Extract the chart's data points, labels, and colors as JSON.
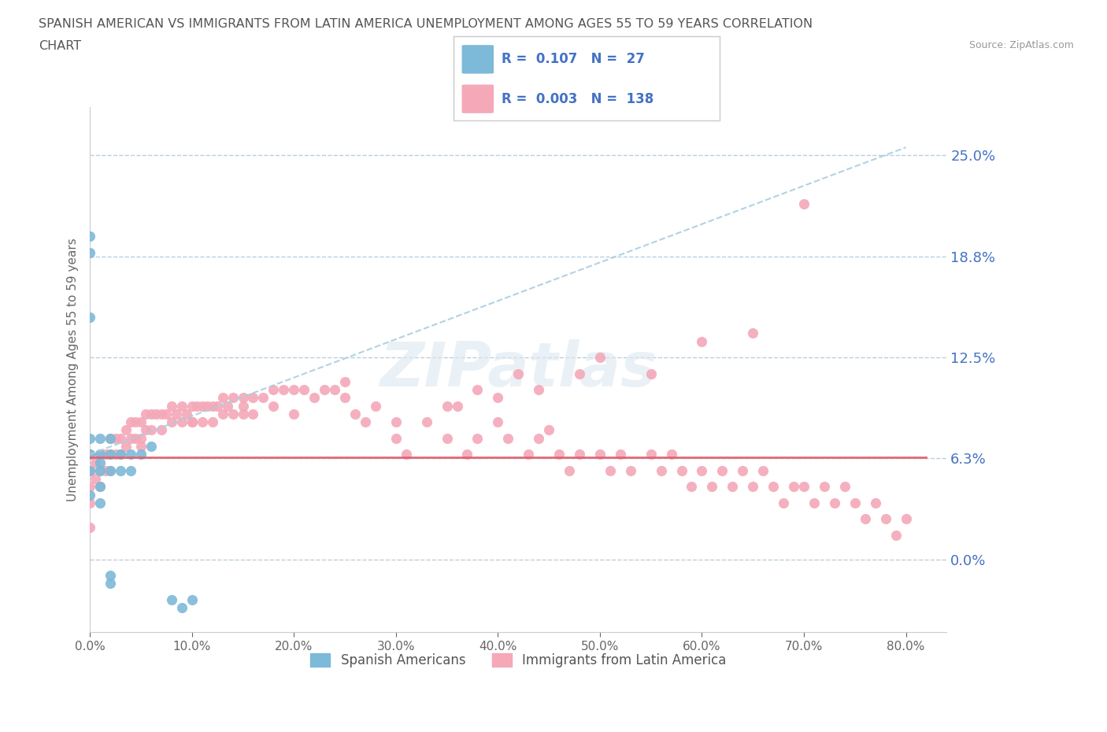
{
  "title_line1": "SPANISH AMERICAN VS IMMIGRANTS FROM LATIN AMERICA UNEMPLOYMENT AMONG AGES 55 TO 59 YEARS CORRELATION",
  "title_line2": "CHART",
  "source_text": "Source: ZipAtlas.com",
  "ylabel": "Unemployment Among Ages 55 to 59 years",
  "xlim": [
    0.0,
    0.84
  ],
  "ylim": [
    -0.045,
    0.28
  ],
  "yticks": [
    0.0,
    0.0625,
    0.125,
    0.1875,
    0.25
  ],
  "ytick_labels": [
    "0.0%",
    "6.3%",
    "12.5%",
    "18.8%",
    "25.0%"
  ],
  "xticks": [
    0.0,
    0.1,
    0.2,
    0.3,
    0.4,
    0.5,
    0.6,
    0.7,
    0.8
  ],
  "xtick_labels": [
    "0.0%",
    "10.0%",
    "20.0%",
    "30.0%",
    "40.0%",
    "50.0%",
    "60.0%",
    "70.0%",
    "80.0%"
  ],
  "grid_color": "#b8cfe0",
  "blue_color": "#7db9d8",
  "pink_color": "#f4a8b8",
  "blue_line_color": "#aacde0",
  "pink_line_color": "#e06070",
  "legend_label1": "Spanish Americans",
  "legend_label2": "Immigrants from Latin America",
  "watermark": "ZIPatlas",
  "blue_scatter_x": [
    0.0,
    0.0,
    0.0,
    0.0,
    0.0,
    0.0,
    0.0,
    0.01,
    0.01,
    0.01,
    0.01,
    0.01,
    0.01,
    0.02,
    0.02,
    0.02,
    0.02,
    0.02,
    0.03,
    0.03,
    0.04,
    0.04,
    0.05,
    0.06,
    0.08,
    0.09,
    0.1
  ],
  "blue_scatter_y": [
    0.2,
    0.19,
    0.15,
    0.075,
    0.065,
    0.055,
    0.04,
    0.075,
    0.065,
    0.06,
    0.055,
    0.045,
    0.035,
    0.075,
    0.065,
    0.055,
    -0.01,
    -0.015,
    0.065,
    0.055,
    0.055,
    0.065,
    0.065,
    0.07,
    -0.025,
    -0.03,
    -0.025
  ],
  "pink_scatter_x": [
    0.0,
    0.0,
    0.0,
    0.0,
    0.0,
    0.005,
    0.005,
    0.01,
    0.01,
    0.01,
    0.015,
    0.015,
    0.02,
    0.02,
    0.02,
    0.025,
    0.025,
    0.03,
    0.03,
    0.035,
    0.035,
    0.04,
    0.04,
    0.045,
    0.045,
    0.05,
    0.05,
    0.055,
    0.055,
    0.06,
    0.06,
    0.065,
    0.07,
    0.07,
    0.075,
    0.08,
    0.08,
    0.085,
    0.09,
    0.09,
    0.095,
    0.1,
    0.1,
    0.105,
    0.11,
    0.11,
    0.115,
    0.12,
    0.12,
    0.125,
    0.13,
    0.13,
    0.135,
    0.14,
    0.14,
    0.15,
    0.15,
    0.16,
    0.16,
    0.17,
    0.18,
    0.18,
    0.19,
    0.2,
    0.21,
    0.22,
    0.23,
    0.24,
    0.25,
    0.26,
    0.27,
    0.28,
    0.3,
    0.31,
    0.33,
    0.35,
    0.37,
    0.38,
    0.4,
    0.41,
    0.43,
    0.44,
    0.46,
    0.47,
    0.48,
    0.5,
    0.51,
    0.52,
    0.53,
    0.55,
    0.56,
    0.57,
    0.58,
    0.59,
    0.6,
    0.61,
    0.62,
    0.63,
    0.64,
    0.65,
    0.66,
    0.67,
    0.68,
    0.69,
    0.7,
    0.71,
    0.72,
    0.73,
    0.74,
    0.75,
    0.76,
    0.77,
    0.78,
    0.79,
    0.8,
    0.65,
    0.7,
    0.55,
    0.6,
    0.45,
    0.4,
    0.35,
    0.3,
    0.25,
    0.2,
    0.15,
    0.1,
    0.05,
    0.5,
    0.48,
    0.44,
    0.42,
    0.38,
    0.36
  ],
  "pink_scatter_y": [
    0.065,
    0.055,
    0.045,
    0.035,
    0.02,
    0.06,
    0.05,
    0.065,
    0.055,
    0.045,
    0.065,
    0.055,
    0.075,
    0.065,
    0.055,
    0.075,
    0.065,
    0.075,
    0.065,
    0.08,
    0.07,
    0.085,
    0.075,
    0.085,
    0.075,
    0.085,
    0.075,
    0.09,
    0.08,
    0.09,
    0.08,
    0.09,
    0.09,
    0.08,
    0.09,
    0.095,
    0.085,
    0.09,
    0.095,
    0.085,
    0.09,
    0.095,
    0.085,
    0.095,
    0.095,
    0.085,
    0.095,
    0.095,
    0.085,
    0.095,
    0.1,
    0.09,
    0.095,
    0.1,
    0.09,
    0.1,
    0.09,
    0.1,
    0.09,
    0.1,
    0.105,
    0.095,
    0.105,
    0.105,
    0.105,
    0.1,
    0.105,
    0.105,
    0.11,
    0.09,
    0.085,
    0.095,
    0.075,
    0.065,
    0.085,
    0.075,
    0.065,
    0.075,
    0.085,
    0.075,
    0.065,
    0.075,
    0.065,
    0.055,
    0.065,
    0.065,
    0.055,
    0.065,
    0.055,
    0.065,
    0.055,
    0.065,
    0.055,
    0.045,
    0.055,
    0.045,
    0.055,
    0.045,
    0.055,
    0.045,
    0.055,
    0.045,
    0.035,
    0.045,
    0.045,
    0.035,
    0.045,
    0.035,
    0.045,
    0.035,
    0.025,
    0.035,
    0.025,
    0.015,
    0.025,
    0.14,
    0.22,
    0.115,
    0.135,
    0.08,
    0.1,
    0.095,
    0.085,
    0.1,
    0.09,
    0.095,
    0.085,
    0.07,
    0.125,
    0.115,
    0.105,
    0.115,
    0.105,
    0.095
  ]
}
